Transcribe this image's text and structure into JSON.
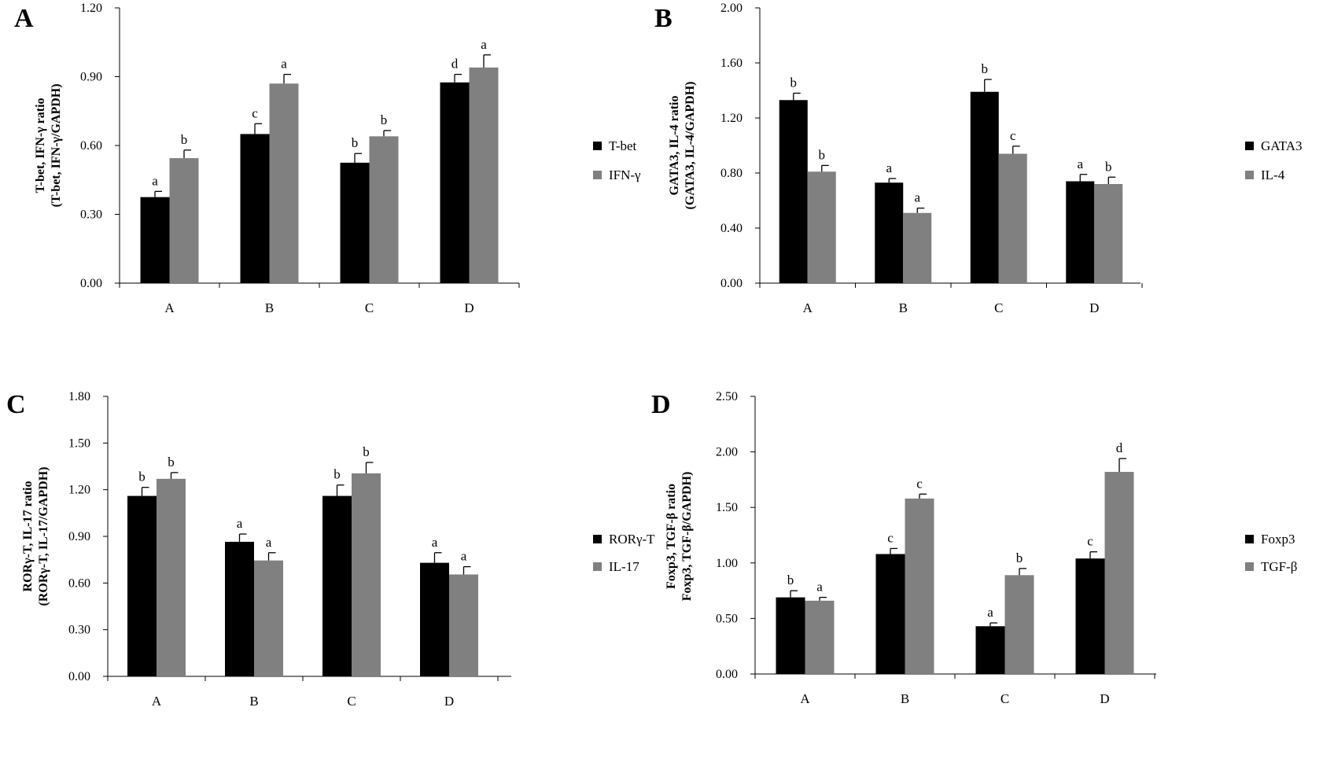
{
  "chart_data": [
    {
      "type": "bar",
      "panel": "A",
      "categories": [
        "A",
        "B",
        "C",
        "D"
      ],
      "ylabel_line1": "T-bet, IFN-γ ratio",
      "ylabel_line2": "(T-bet, IFN-γ/GAPDH)",
      "ylim": [
        0,
        1.2
      ],
      "yticks": [
        "0.00",
        "0.30",
        "0.60",
        "0.90",
        "1.20"
      ],
      "legend_position": "right",
      "series": [
        {
          "name": "T-bet",
          "color": "#000000",
          "values": [
            0.375,
            0.65,
            0.525,
            0.875
          ],
          "errors": [
            0.025,
            0.045,
            0.04,
            0.035
          ],
          "labels": [
            "a",
            "c",
            "b",
            "d"
          ]
        },
        {
          "name": "IFN-γ",
          "color": "#808080",
          "values": [
            0.545,
            0.87,
            0.64,
            0.94
          ],
          "errors": [
            0.035,
            0.04,
            0.025,
            0.055
          ],
          "labels": [
            "b",
            "a",
            "b",
            "a"
          ]
        }
      ]
    },
    {
      "type": "bar",
      "panel": "B",
      "categories": [
        "A",
        "B",
        "C",
        "D"
      ],
      "ylabel_line1": "GATA3, IL-4 ratio",
      "ylabel_line2": "(GATA3, IL-4/GAPDH)",
      "ylim": [
        0,
        2.0
      ],
      "yticks": [
        "0.00",
        "0.40",
        "0.80",
        "1.20",
        "1.60",
        "2.00"
      ],
      "legend_position": "right",
      "series": [
        {
          "name": "GATA3",
          "color": "#000000",
          "values": [
            1.33,
            0.73,
            1.39,
            0.74
          ],
          "errors": [
            0.05,
            0.03,
            0.09,
            0.05
          ],
          "labels": [
            "b",
            "a",
            "b",
            "a"
          ]
        },
        {
          "name": "IL-4",
          "color": "#808080",
          "values": [
            0.81,
            0.51,
            0.94,
            0.72
          ],
          "errors": [
            0.045,
            0.035,
            0.055,
            0.05
          ],
          "labels": [
            "b",
            "a",
            "c",
            "b"
          ]
        }
      ]
    },
    {
      "type": "bar",
      "panel": "C",
      "categories": [
        "A",
        "B",
        "C",
        "D"
      ],
      "ylabel_line1": "RORγ-T, IL-17 ratio",
      "ylabel_line2": "(RORγ-T, IL-17/GAPDH)",
      "ylim": [
        0,
        1.8
      ],
      "yticks": [
        "0.00",
        "0.30",
        "0.60",
        "0.90",
        "1.20",
        "1.50",
        "1.80"
      ],
      "legend_position": "right",
      "series": [
        {
          "name": "RORγ-T",
          "color": "#000000",
          "values": [
            1.16,
            0.865,
            1.16,
            0.73
          ],
          "errors": [
            0.055,
            0.05,
            0.07,
            0.065
          ],
          "labels": [
            "b",
            "a",
            "b",
            "a"
          ]
        },
        {
          "name": "IL-17",
          "color": "#808080",
          "values": [
            1.27,
            0.745,
            1.305,
            0.655
          ],
          "errors": [
            0.04,
            0.05,
            0.07,
            0.05
          ],
          "labels": [
            "b",
            "a",
            "b",
            "a"
          ]
        }
      ]
    },
    {
      "type": "bar",
      "panel": "D",
      "categories": [
        "A",
        "B",
        "C",
        "D"
      ],
      "ylabel_line1": "Foxp3, TGF-β ratio",
      "ylabel_line2": "Foxp3, TGF-β/GAPDH)",
      "ylim": [
        0,
        2.5
      ],
      "yticks": [
        "0.00",
        "0.50",
        "1.00",
        "1.50",
        "2.00",
        "2.50"
      ],
      "legend_position": "right",
      "series": [
        {
          "name": "Foxp3",
          "color": "#000000",
          "values": [
            0.69,
            1.08,
            0.43,
            1.04
          ],
          "errors": [
            0.06,
            0.05,
            0.03,
            0.06
          ],
          "labels": [
            "b",
            "c",
            "a",
            "c"
          ]
        },
        {
          "name": "TGF-β",
          "color": "#808080",
          "values": [
            0.66,
            1.58,
            0.89,
            1.82
          ],
          "errors": [
            0.03,
            0.04,
            0.06,
            0.12
          ],
          "labels": [
            "a",
            "c",
            "b",
            "d"
          ]
        }
      ]
    }
  ]
}
